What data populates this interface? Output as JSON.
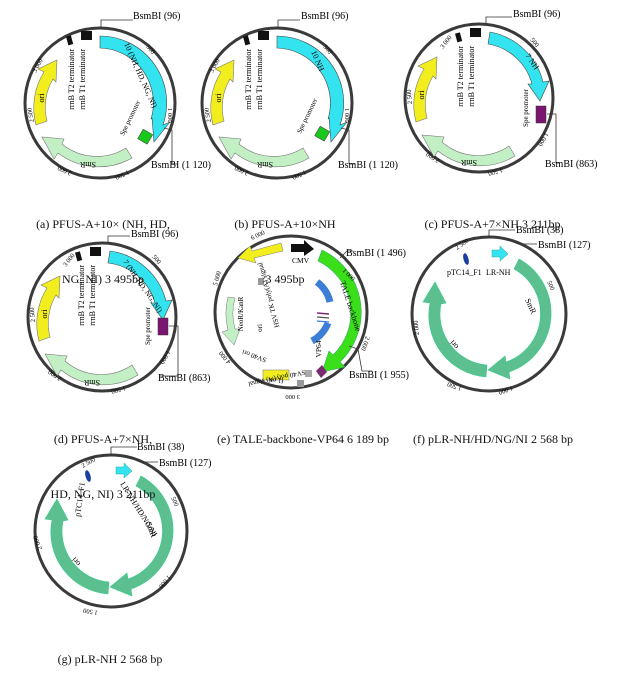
{
  "maps": [
    {
      "id": "a",
      "caption": [
        "(a) PFUS-A+10× (NH, HD,",
        "NG, NI) 3 495bp"
      ],
      "sites": [
        "BsmBI (96)",
        "BsmBI (1 120)"
      ],
      "features": [
        "rrnB T2 terminator",
        "rrnB T1 terminator",
        "10 (NH, HD, NG, NI)",
        "ori",
        "Spe promoter",
        "SmR"
      ],
      "ticks": [
        "500",
        "1 000",
        "1 500",
        "2 000",
        "2 500",
        "3 000"
      ]
    },
    {
      "id": "b",
      "caption": [
        "(b) PFUS-A+10×NH",
        "3 495bp"
      ],
      "sites": [
        "BsmBI (96)",
        "BsmBI (1 120)"
      ],
      "features": [
        "rrnB T2 terminator",
        "rrnB T1 terminator",
        "10 NH",
        "ori",
        "Spe promoter",
        "SmR"
      ],
      "ticks": [
        "500",
        "1 000",
        "1 500",
        "2 000",
        "2 500",
        "3 000"
      ]
    },
    {
      "id": "c",
      "caption": [
        "(c) PFUS-A+7×NH 3 211bp"
      ],
      "sites": [
        "BsmBI (96)",
        "BsmBI (863)"
      ],
      "features": [
        "rrnB T2 terminator",
        "rrnB T1 terminator",
        "7 NH",
        "ori",
        "Spe promoter",
        "SmR"
      ],
      "ticks": [
        "500",
        "1 000",
        "1 500",
        "2 000",
        "2 500",
        "3 000"
      ]
    },
    {
      "id": "d",
      "caption": [
        "(d) PFUS-A+7×NH,",
        "HD, NG, NI) 3 211bp"
      ],
      "sites": [
        "BsmBI (96)",
        "BsmBI (863)"
      ],
      "features": [
        "rrnB T2 terminator",
        "rrnB T1 terminator",
        "7 (NH, HD, NG, NI)",
        "ori",
        "Spe promoter",
        "SmR"
      ],
      "ticks": [
        "500",
        "1 000",
        "1 500",
        "2 000",
        "2 500",
        "3 000"
      ]
    },
    {
      "id": "e",
      "caption": [
        "(e) TALE-backbone-VP64 6 189 bp"
      ],
      "sites": [
        "BsmBI (1 496)",
        "BsmBI (1 955)"
      ],
      "features": [
        "CMV",
        "TALE backbone",
        "VP64",
        "SV40 poly(A) signal",
        "f1 ori",
        "SV40 ori",
        "NeoR/KanR",
        "HSV TK poly(A) signal",
        "ori"
      ],
      "ticks": [
        "1 000",
        "2 000",
        "3 000",
        "4 000",
        "5 000",
        "6 000"
      ]
    },
    {
      "id": "f",
      "caption": [
        "(f) pLR-NH/HD/NG/NI 2 568 bp"
      ],
      "sites": [
        "BsmBI (38)",
        "BsmBI (127)"
      ],
      "features": [
        "pTC14_F1",
        "LR-NH",
        "SmR",
        "ori"
      ],
      "ticks": [
        "500",
        "1 000",
        "1 500",
        "2 000",
        "2 500"
      ]
    },
    {
      "id": "g",
      "caption": [
        "(g) pLR-NH 2 568 bp"
      ],
      "sites": [
        "BsmBI (38)",
        "BsmBI (127)"
      ],
      "features": [
        "pTC14_F1",
        "LR-NH/HD/NG/NI",
        "SmR",
        "ori"
      ],
      "ticks": [
        "500",
        "1 000",
        "1 500",
        "2 000",
        "2 500"
      ]
    }
  ],
  "colors": {
    "ring": "#3a3a3a",
    "repeat": "#33e4f0",
    "ori": "#f2ee1e",
    "smr": "#c2f0c4",
    "spe_green": "#19c81a",
    "spe_purple": "#7a1670",
    "terminator": "#111111",
    "tale_backbone": "#3adf1a",
    "vp64": "#7a2a6e",
    "inner_blue": "#3b7fd6",
    "pTC14": "#1a3fa0",
    "smr_dark": "#5cbf8f",
    "grey": "#999999"
  }
}
